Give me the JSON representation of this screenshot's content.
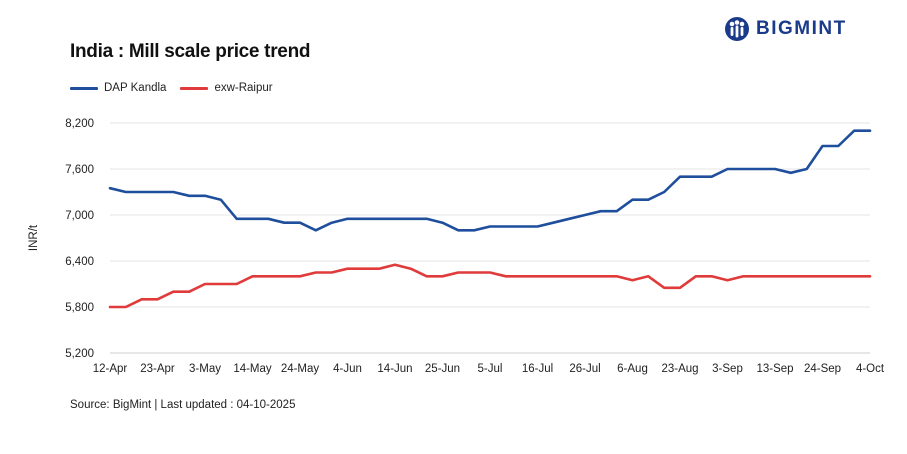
{
  "brand": {
    "name": "BIGMINT",
    "logo_icon": "people-logo-icon",
    "color": "#1a3a8a"
  },
  "source_note": "Source: BigMint | Last updated : 04-10-2025",
  "chart_data": {
    "type": "line",
    "title": "India : Mill scale price trend",
    "xlabel": "",
    "ylabel": "INR/t",
    "ylim": [
      5200,
      8200
    ],
    "yticks": [
      5200,
      5800,
      6400,
      7000,
      7600,
      8200
    ],
    "ytick_labels": [
      "5,200",
      "5,800",
      "6,400",
      "7,000",
      "7,600",
      "8,200"
    ],
    "grid": true,
    "legend_position": "top-left",
    "x_tick_labels": [
      "12-Apr",
      "23-Apr",
      "3-May",
      "14-May",
      "24-May",
      "4-Jun",
      "14-Jun",
      "25-Jun",
      "5-Jul",
      "16-Jul",
      "26-Jul",
      "6-Aug",
      "23-Aug",
      "3-Sep",
      "13-Sep",
      "24-Sep",
      "4-Oct"
    ],
    "x": [
      0,
      1,
      2,
      3,
      4,
      5,
      6,
      7,
      8,
      9,
      10,
      11,
      12,
      13,
      14,
      15,
      16,
      17,
      18,
      19,
      20,
      21,
      22,
      23,
      24,
      25,
      26,
      27,
      28,
      29,
      30,
      31,
      32,
      33,
      34,
      35,
      36,
      37,
      38,
      39,
      40,
      41,
      42,
      43,
      44,
      45,
      46,
      47,
      48
    ],
    "series": [
      {
        "name": "DAP Kandla",
        "color": "#1f4e9c",
        "values": [
          7350,
          7300,
          7300,
          7300,
          7300,
          7250,
          7250,
          7200,
          6950,
          6950,
          6950,
          6900,
          6900,
          6800,
          6900,
          6950,
          6950,
          6950,
          6950,
          6950,
          6950,
          6900,
          6800,
          6800,
          6850,
          6850,
          6850,
          6850,
          6900,
          6950,
          7000,
          7050,
          7050,
          7200,
          7200,
          7300,
          7500,
          7500,
          7500,
          7600,
          7600,
          7600,
          7600,
          7550,
          7600,
          7900,
          7900,
          8100,
          8100
        ]
      },
      {
        "name": "exw-Raipur",
        "color": "#e03a3a",
        "values": [
          5800,
          5800,
          5900,
          5900,
          6000,
          6000,
          6100,
          6100,
          6100,
          6200,
          6200,
          6200,
          6200,
          6250,
          6250,
          6300,
          6300,
          6300,
          6350,
          6300,
          6200,
          6200,
          6250,
          6250,
          6250,
          6200,
          6200,
          6200,
          6200,
          6200,
          6200,
          6200,
          6200,
          6150,
          6200,
          6050,
          6050,
          6200,
          6200,
          6150,
          6200,
          6200,
          6200,
          6200,
          6200,
          6200,
          6200,
          6200,
          6200
        ]
      }
    ]
  }
}
